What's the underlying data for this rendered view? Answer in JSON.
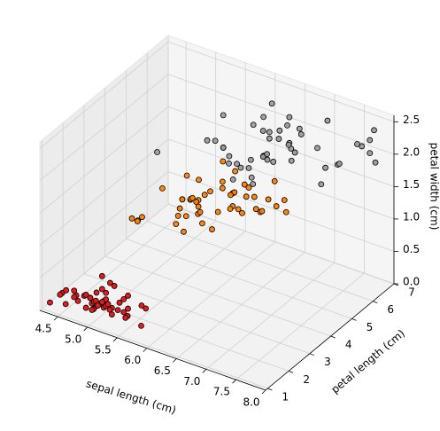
{
  "chart_data": {
    "type": "scatter3d",
    "xlabel": "sepal length (cm)",
    "ylabel": "petal length (cm)",
    "zlabel": "petal width (cm)",
    "xlim": [
      4.2,
      8.0
    ],
    "ylim": [
      0.9,
      7.0
    ],
    "zlim": [
      0,
      2.6
    ],
    "xticks": [
      4.5,
      {
        "value": 5,
        "label": "5.0"
      },
      5.5,
      {
        "value": 6,
        "label": "6.0"
      },
      6.5,
      {
        "value": 7,
        "label": "7.0"
      },
      7.5,
      {
        "value": 8,
        "label": "8.0"
      }
    ],
    "yticks": [
      1,
      2,
      3,
      4,
      5,
      6,
      7
    ],
    "zticks": [
      {
        "value": 0,
        "label": "0.0"
      },
      0.5,
      {
        "value": 1,
        "label": "1.0"
      },
      1.5,
      {
        "value": 2,
        "label": "2.0"
      },
      2.5
    ],
    "grid": true,
    "series": [
      {
        "color": "#e41a1c",
        "x": [
          5.1,
          4.9,
          4.7,
          4.6,
          5.0,
          5.4,
          4.6,
          5.0,
          4.4,
          4.9,
          5.4,
          4.8,
          4.8,
          4.3,
          5.8,
          5.7,
          5.4,
          5.1,
          5.7,
          5.1,
          5.4,
          5.1,
          4.6,
          5.1,
          4.8,
          5.0,
          5.0,
          5.2,
          5.2,
          4.7,
          4.8,
          5.4,
          5.2,
          5.5,
          4.9,
          5.0,
          5.5,
          4.9,
          4.4,
          5.1,
          5.0,
          4.5,
          4.4,
          5.0,
          5.1,
          4.8,
          5.1,
          4.6,
          5.3,
          5.0
        ],
        "y": [
          1.4,
          1.4,
          1.3,
          1.5,
          1.4,
          1.7,
          1.4,
          1.5,
          1.4,
          1.5,
          1.5,
          1.6,
          1.4,
          1.1,
          1.2,
          1.5,
          1.3,
          1.4,
          1.7,
          1.5,
          1.7,
          1.5,
          1.0,
          1.7,
          1.9,
          1.6,
          1.6,
          1.5,
          1.4,
          1.6,
          1.6,
          1.5,
          1.5,
          1.4,
          1.5,
          1.2,
          1.3,
          1.4,
          1.3,
          1.5,
          1.3,
          1.3,
          1.3,
          1.6,
          1.9,
          1.4,
          1.6,
          1.4,
          1.5,
          1.4
        ],
        "z": [
          0.2,
          0.2,
          0.2,
          0.2,
          0.2,
          0.4,
          0.3,
          0.2,
          0.2,
          0.1,
          0.2,
          0.2,
          0.1,
          0.1,
          0.2,
          0.4,
          0.4,
          0.3,
          0.3,
          0.3,
          0.2,
          0.4,
          0.2,
          0.5,
          0.2,
          0.2,
          0.4,
          0.2,
          0.2,
          0.2,
          0.2,
          0.4,
          0.1,
          0.2,
          0.2,
          0.2,
          0.2,
          0.1,
          0.2,
          0.2,
          0.3,
          0.3,
          0.2,
          0.6,
          0.4,
          0.3,
          0.2,
          0.2,
          0.2,
          0.2
        ]
      },
      {
        "color": "#ff7f00",
        "x": [
          7.0,
          6.4,
          6.9,
          5.5,
          6.5,
          5.7,
          6.3,
          4.9,
          6.6,
          5.2,
          5.0,
          5.9,
          6.0,
          6.1,
          5.6,
          6.7,
          5.6,
          5.8,
          6.2,
          5.6,
          5.9,
          6.1,
          6.3,
          6.1,
          6.4,
          6.6,
          6.8,
          6.7,
          6.0,
          5.7,
          5.5,
          5.5,
          5.8,
          6.0,
          5.4,
          6.0,
          6.7,
          6.3,
          5.6,
          5.5,
          5.5,
          6.1,
          5.8,
          5.0,
          5.6,
          5.7,
          5.7,
          6.2,
          5.1,
          5.7
        ],
        "y": [
          4.7,
          4.5,
          4.9,
          4.0,
          4.6,
          4.5,
          4.7,
          3.3,
          4.6,
          3.9,
          3.5,
          4.2,
          4.0,
          4.7,
          3.6,
          4.4,
          4.5,
          4.1,
          4.5,
          3.9,
          4.8,
          4.0,
          4.9,
          4.7,
          4.3,
          4.4,
          4.8,
          5.0,
          4.5,
          3.5,
          3.8,
          3.7,
          3.9,
          5.1,
          4.5,
          4.5,
          4.7,
          4.4,
          4.1,
          4.0,
          4.4,
          4.6,
          4.0,
          3.3,
          4.2,
          4.2,
          4.2,
          4.3,
          3.0,
          4.1
        ],
        "z": [
          1.4,
          1.5,
          1.5,
          1.3,
          1.5,
          1.3,
          1.6,
          1.0,
          1.3,
          1.4,
          1.0,
          1.5,
          1.0,
          1.4,
          1.3,
          1.4,
          1.5,
          1.0,
          1.5,
          1.1,
          1.8,
          1.3,
          1.5,
          1.2,
          1.3,
          1.4,
          1.4,
          1.7,
          1.5,
          1.0,
          1.1,
          1.0,
          1.2,
          1.6,
          1.5,
          1.6,
          1.5,
          1.3,
          1.3,
          1.3,
          1.2,
          1.4,
          1.2,
          1.0,
          1.3,
          1.2,
          1.3,
          1.3,
          1.1,
          1.3
        ]
      },
      {
        "color": "#999999",
        "x": [
          6.3,
          5.8,
          7.1,
          6.3,
          6.5,
          7.6,
          4.9,
          7.3,
          6.7,
          7.2,
          6.5,
          6.4,
          6.8,
          5.7,
          5.8,
          6.4,
          6.5,
          7.7,
          7.7,
          6.0,
          6.9,
          5.6,
          7.7,
          6.3,
          6.7,
          7.2,
          6.2,
          6.1,
          6.4,
          7.2,
          7.4,
          7.9,
          6.4,
          6.3,
          6.1,
          7.7,
          6.3,
          6.4,
          6.0,
          6.9,
          6.7,
          6.9,
          5.8,
          6.8,
          6.7,
          6.7,
          6.3,
          6.5,
          6.2,
          5.9
        ],
        "y": [
          6.0,
          5.1,
          5.9,
          5.6,
          5.8,
          6.6,
          4.5,
          6.3,
          5.8,
          6.1,
          5.1,
          5.3,
          5.5,
          5.0,
          5.1,
          5.3,
          5.5,
          6.7,
          6.9,
          5.0,
          5.7,
          4.9,
          6.7,
          4.9,
          5.7,
          6.0,
          4.8,
          4.9,
          5.6,
          5.8,
          6.1,
          6.4,
          5.6,
          5.1,
          5.6,
          6.1,
          5.6,
          5.5,
          4.8,
          5.4,
          5.6,
          5.1,
          5.1,
          5.9,
          5.7,
          5.2,
          5.0,
          5.2,
          5.4,
          5.1
        ],
        "z": [
          2.5,
          1.9,
          2.1,
          1.8,
          2.2,
          2.1,
          1.7,
          1.8,
          1.8,
          2.5,
          2.0,
          1.9,
          2.1,
          2.0,
          2.4,
          2.3,
          1.8,
          2.2,
          2.3,
          1.5,
          2.3,
          2.0,
          2.0,
          1.8,
          2.1,
          1.8,
          1.8,
          1.8,
          2.1,
          1.6,
          1.9,
          2.0,
          2.2,
          1.5,
          1.4,
          2.3,
          2.4,
          1.8,
          1.8,
          2.1,
          2.4,
          2.3,
          1.9,
          2.3,
          2.5,
          2.3,
          1.9,
          2.0,
          2.3,
          1.8
        ]
      }
    ]
  }
}
